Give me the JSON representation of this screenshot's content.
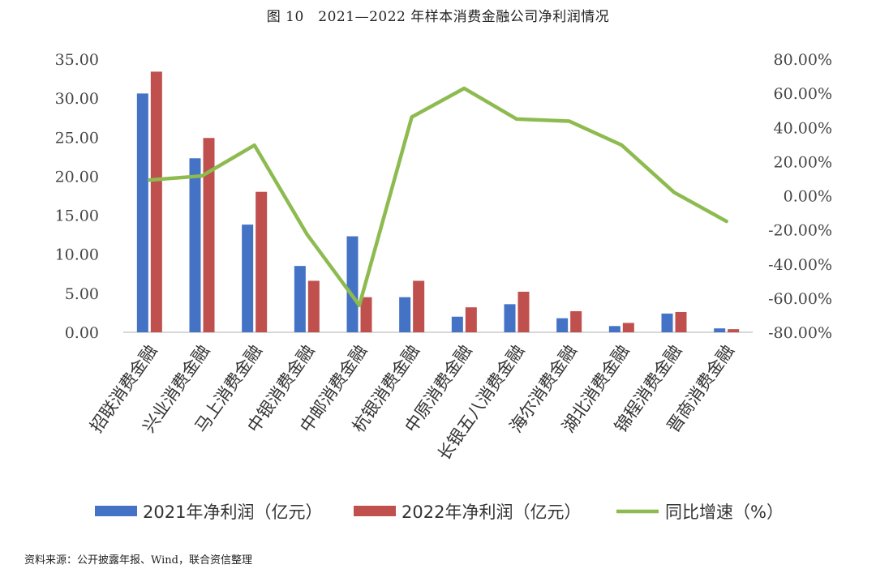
{
  "title": "图 10　2021—2022 年样本消费金融公司净利润情况",
  "source": "资料来源：公开披露年报、Wind，联合资信整理",
  "colors": {
    "bar2021": "#4472C4",
    "bar2022": "#C0504D",
    "line": "#8DBB4F",
    "axis": "#bfbfbf"
  },
  "chart_data": {
    "type": "bar",
    "categories": [
      "招联消费金融",
      "兴业消费金融",
      "马上消费金融",
      "中银消费金融",
      "中邮消费金融",
      "杭银消费金融",
      "中原消费金融",
      "长银五八消费金融",
      "海尔消费金融",
      "湖北消费金融",
      "锦程消费金融",
      "晋商消费金融"
    ],
    "series": [
      {
        "name": "2021年净利润（亿元）",
        "type": "bar",
        "axis": "left",
        "values": [
          30.6,
          22.3,
          13.8,
          8.5,
          12.3,
          4.5,
          2.0,
          3.6,
          1.8,
          0.8,
          2.4,
          0.5
        ]
      },
      {
        "name": "2022年净利润（亿元）",
        "type": "bar",
        "axis": "left",
        "values": [
          33.4,
          24.9,
          18.0,
          6.6,
          4.5,
          6.6,
          3.2,
          5.2,
          2.7,
          1.2,
          2.6,
          0.4
        ]
      },
      {
        "name": "同比增速（%）",
        "type": "line",
        "axis": "right",
        "values": [
          9.2,
          11.6,
          29.6,
          -22.5,
          -64.2,
          46.1,
          62.9,
          44.9,
          43.7,
          29.7,
          2.0,
          -15.0
        ]
      }
    ],
    "yleft": {
      "ylim": [
        0,
        35
      ],
      "ticks": [
        "0.00",
        "5.00",
        "10.00",
        "15.00",
        "20.00",
        "25.00",
        "30.00",
        "35.00"
      ]
    },
    "yright": {
      "ylim": [
        -80,
        80
      ],
      "ticks": [
        "-80.00%",
        "-60.00%",
        "-40.00%",
        "-20.00%",
        "0.00%",
        "20.00%",
        "40.00%",
        "60.00%",
        "80.00%"
      ]
    },
    "legend_position": "bottom",
    "grid": false
  }
}
